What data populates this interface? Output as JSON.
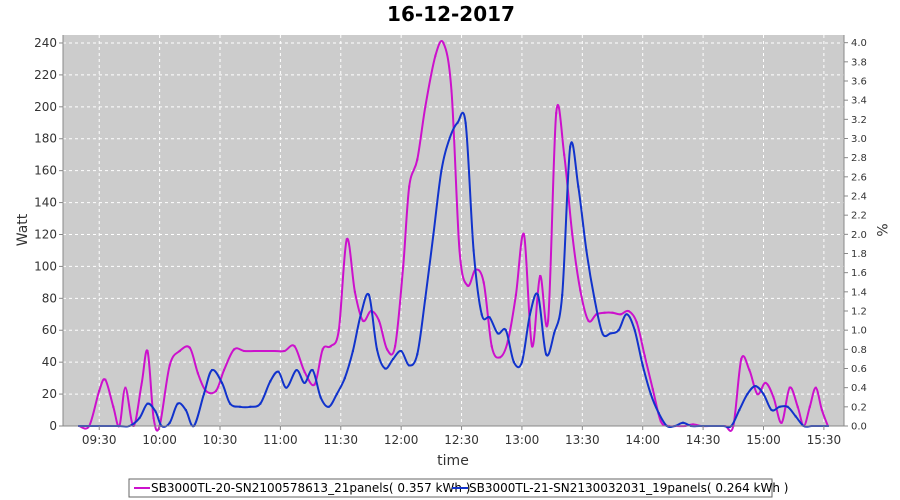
{
  "chart_data": {
    "type": "line",
    "title": "16-12-2017",
    "xlabel": "time",
    "ylabel": "Watt",
    "ylabel_right": "%",
    "grid": true,
    "legend_position": "bottom",
    "x_ticks": [
      "09:30",
      "10:00",
      "10:30",
      "11:00",
      "11:30",
      "12:00",
      "12:30",
      "13:00",
      "13:30",
      "14:00",
      "14:30",
      "15:00",
      "15:30"
    ],
    "x_tick_minutes": [
      570,
      600,
      630,
      660,
      690,
      720,
      750,
      780,
      810,
      840,
      870,
      900,
      930
    ],
    "xlim_minutes": [
      552,
      940
    ],
    "ylim": [
      0,
      245
    ],
    "y_ticks": [
      0,
      20,
      40,
      60,
      80,
      100,
      120,
      140,
      160,
      180,
      200,
      220,
      240
    ],
    "ylim_right": [
      0,
      4.08
    ],
    "y_ticks_right": [
      "0.0",
      "0.2",
      "0.4",
      "0.6",
      "0.8",
      "1.0",
      "1.2",
      "1.4",
      "1.6",
      "1.8",
      "2.0",
      "2.2",
      "2.4",
      "2.6",
      "2.8",
      "3.0",
      "3.2",
      "3.4",
      "3.6",
      "3.8",
      "4.0"
    ],
    "series": [
      {
        "name": "SB3000TL-20-SN2100578613_21panels( 0.357 kWh )",
        "color": "#cc11cc",
        "x": [
          560,
          565,
          570,
          573,
          577,
          580,
          583,
          587,
          591,
          594,
          597,
          600,
          605,
          610,
          615,
          619,
          623,
          628,
          632,
          637,
          642,
          647,
          652,
          657,
          662,
          667,
          672,
          677,
          681,
          685,
          689,
          693,
          697,
          701,
          705,
          709,
          713,
          717,
          721,
          724,
          728,
          732,
          737,
          741,
          745,
          749,
          753,
          757,
          761,
          765,
          769,
          773,
          777,
          781,
          785,
          789,
          793,
          797,
          801,
          805,
          809,
          813,
          817,
          821,
          825,
          829,
          833,
          837,
          841,
          845,
          849,
          853,
          857,
          861,
          865,
          869,
          873,
          877,
          881,
          885,
          889,
          893,
          897,
          901,
          905,
          909,
          913,
          917,
          920,
          923,
          926,
          929,
          932
        ],
        "y": [
          0,
          0,
          22,
          29,
          12,
          0,
          24,
          0,
          26,
          47,
          5,
          0,
          38,
          47,
          49,
          33,
          22,
          22,
          35,
          48,
          47,
          47,
          47,
          47,
          47,
          50,
          34,
          26,
          48,
          50,
          60,
          117,
          84,
          66,
          72,
          66,
          48,
          50,
          100,
          150,
          167,
          200,
          232,
          240,
          210,
          110,
          88,
          98,
          90,
          50,
          43,
          53,
          82,
          120,
          50,
          94,
          66,
          196,
          170,
          120,
          85,
          66,
          70,
          71,
          71,
          70,
          72,
          65,
          44,
          23,
          3,
          0,
          0,
          0,
          1,
          0,
          0,
          0,
          0,
          0,
          42,
          35,
          20,
          27,
          18,
          2,
          24,
          12,
          0,
          12,
          24,
          10,
          0
        ]
      },
      {
        "name": "SB3000TL-21-SN2130032031_19panels( 0.264 kWh )",
        "color": "#1133cc",
        "x": [
          560,
          565,
          570,
          575,
          580,
          585,
          590,
          594,
          598,
          601,
          605,
          609,
          613,
          617,
          622,
          626,
          631,
          635,
          640,
          645,
          650,
          655,
          659,
          663,
          668,
          672,
          676,
          680,
          684,
          688,
          692,
          696,
          700,
          704,
          708,
          712,
          716,
          720,
          724,
          728,
          732,
          736,
          740,
          744,
          748,
          752,
          756,
          760,
          764,
          768,
          772,
          776,
          780,
          784,
          788,
          792,
          796,
          800,
          804,
          808,
          812,
          816,
          820,
          824,
          828,
          832,
          836,
          840,
          844,
          848,
          852,
          856,
          860,
          864,
          868,
          872,
          876,
          880,
          884,
          888,
          892,
          896,
          900,
          904,
          908,
          912,
          916,
          920,
          924,
          928,
          932
        ],
        "y": [
          0,
          0,
          0,
          0,
          0,
          0,
          5,
          14,
          9,
          0,
          2,
          14,
          10,
          0,
          20,
          35,
          27,
          14,
          12,
          12,
          14,
          28,
          34,
          24,
          35,
          27,
          35,
          18,
          12,
          20,
          30,
          47,
          70,
          82,
          48,
          36,
          42,
          47,
          38,
          45,
          80,
          120,
          160,
          180,
          190,
          190,
          110,
          70,
          68,
          58,
          60,
          40,
          40,
          70,
          82,
          45,
          58,
          82,
          175,
          150,
          110,
          80,
          58,
          58,
          60,
          70,
          60,
          38,
          20,
          8,
          0,
          0,
          2,
          0,
          0,
          0,
          0,
          0,
          0,
          10,
          20,
          25,
          20,
          10,
          12,
          12,
          6,
          0,
          0,
          0,
          0
        ]
      }
    ]
  }
}
